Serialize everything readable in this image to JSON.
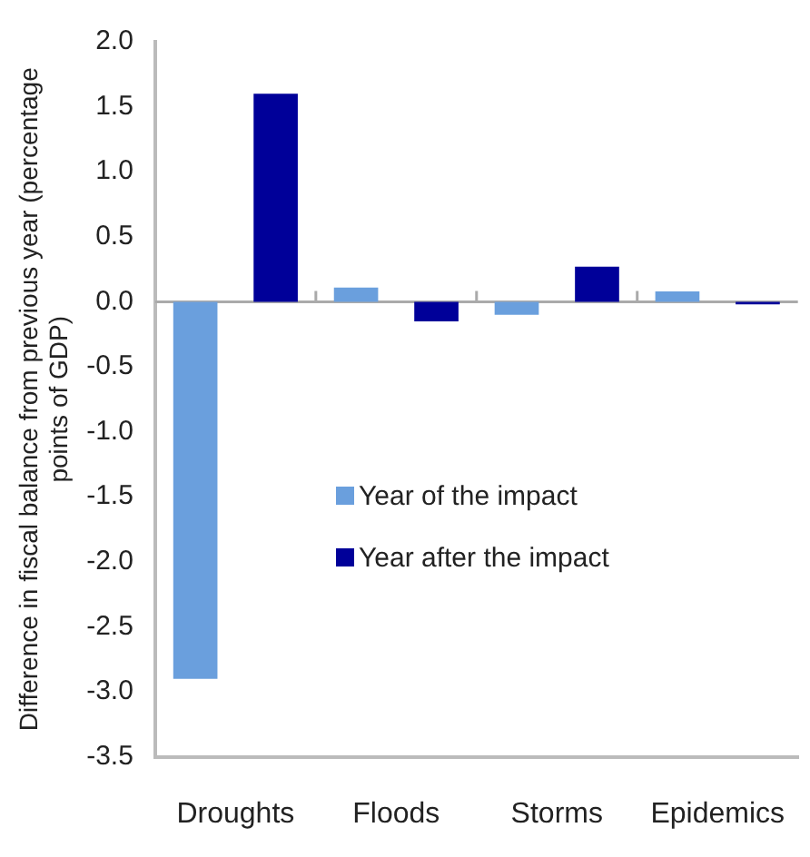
{
  "chart_data": {
    "type": "bar",
    "ylabel": "Difference in fiscal balance from previous year (percentage points of GDP)",
    "categories": [
      "Droughts",
      "Floods",
      "Storms",
      "Epidemics"
    ],
    "series": [
      {
        "name": "Year of the impact",
        "color": "#6a9fdd",
        "values": [
          -2.9,
          0.11,
          -0.1,
          0.08
        ]
      },
      {
        "name": "Year after the impact",
        "color": "#000099",
        "values": [
          1.6,
          -0.15,
          0.27,
          -0.02
        ]
      }
    ],
    "ylim": [
      -3.5,
      2.0
    ],
    "yticks": [
      {
        "value": -3.5,
        "label": "-3.5"
      },
      {
        "value": -3,
        "label": "-3.0"
      },
      {
        "value": -2.5,
        "label": "-2.5"
      },
      {
        "value": -2,
        "label": "-2.0"
      },
      {
        "value": -1.5,
        "label": "-1.5"
      },
      {
        "value": -1,
        "label": "-1.0"
      },
      {
        "value": -0.5,
        "label": "-0.5"
      },
      {
        "value": 0,
        "label": "0.0"
      },
      {
        "value": 0.5,
        "label": "0.5"
      },
      {
        "value": 1,
        "label": "1.0"
      },
      {
        "value": 1.5,
        "label": "1.5"
      },
      {
        "value": 2,
        "label": "2.0"
      }
    ],
    "ref_lines": [
      {
        "axis": "y",
        "value": 0,
        "color": "#aaaaaa"
      }
    ],
    "grid": false,
    "legend": "bottom"
  }
}
